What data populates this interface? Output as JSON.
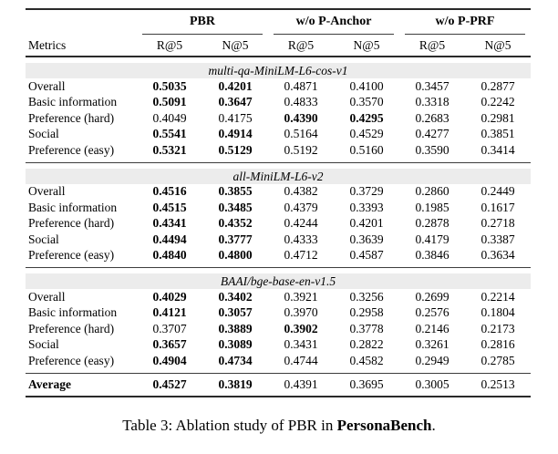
{
  "table": {
    "header": {
      "metrics": "Metrics",
      "groups": [
        {
          "label": "PBR"
        },
        {
          "label": "w/o P-Anchor"
        },
        {
          "label": "w/o P-PRF"
        }
      ],
      "subheaders": [
        "R@5",
        "N@5",
        "R@5",
        "N@5",
        "R@5",
        "N@5"
      ]
    },
    "sections": [
      {
        "model": "multi-qa-MiniLM-L6-cos-v1",
        "rows": [
          {
            "metric": "Overall",
            "values": [
              "0.5035",
              "0.4201",
              "0.4871",
              "0.4100",
              "0.3457",
              "0.2877"
            ],
            "bold": [
              0,
              1
            ]
          },
          {
            "metric": "Basic information",
            "values": [
              "0.5091",
              "0.3647",
              "0.4833",
              "0.3570",
              "0.3318",
              "0.2242"
            ],
            "bold": [
              0,
              1
            ]
          },
          {
            "metric": "Preference (hard)",
            "values": [
              "0.4049",
              "0.4175",
              "0.4390",
              "0.4295",
              "0.2683",
              "0.2981"
            ],
            "bold": [
              2,
              3
            ]
          },
          {
            "metric": "Social",
            "values": [
              "0.5541",
              "0.4914",
              "0.5164",
              "0.4529",
              "0.4277",
              "0.3851"
            ],
            "bold": [
              0,
              1
            ]
          },
          {
            "metric": "Preference (easy)",
            "values": [
              "0.5321",
              "0.5129",
              "0.5192",
              "0.5160",
              "0.3590",
              "0.3414"
            ],
            "bold": [
              0,
              1
            ]
          }
        ]
      },
      {
        "model": "all-MiniLM-L6-v2",
        "rows": [
          {
            "metric": "Overall",
            "values": [
              "0.4516",
              "0.3855",
              "0.4382",
              "0.3729",
              "0.2860",
              "0.2449"
            ],
            "bold": [
              0,
              1
            ]
          },
          {
            "metric": "Basic information",
            "values": [
              "0.4515",
              "0.3485",
              "0.4379",
              "0.3393",
              "0.1985",
              "0.1617"
            ],
            "bold": [
              0,
              1
            ]
          },
          {
            "metric": "Preference (hard)",
            "values": [
              "0.4341",
              "0.4352",
              "0.4244",
              "0.4201",
              "0.2878",
              "0.2718"
            ],
            "bold": [
              0,
              1
            ]
          },
          {
            "metric": "Social",
            "values": [
              "0.4494",
              "0.3777",
              "0.4333",
              "0.3639",
              "0.4179",
              "0.3387"
            ],
            "bold": [
              0,
              1
            ]
          },
          {
            "metric": "Preference (easy)",
            "values": [
              "0.4840",
              "0.4800",
              "0.4712",
              "0.4587",
              "0.3846",
              "0.3634"
            ],
            "bold": [
              0,
              1
            ]
          }
        ]
      },
      {
        "model": "BAAI/bge-base-en-v1.5",
        "rows": [
          {
            "metric": "Overall",
            "values": [
              "0.4029",
              "0.3402",
              "0.3921",
              "0.3256",
              "0.2699",
              "0.2214"
            ],
            "bold": [
              0,
              1
            ]
          },
          {
            "metric": "Basic information",
            "values": [
              "0.4121",
              "0.3057",
              "0.3970",
              "0.2958",
              "0.2576",
              "0.1804"
            ],
            "bold": [
              0,
              1
            ]
          },
          {
            "metric": "Preference (hard)",
            "values": [
              "0.3707",
              "0.3889",
              "0.3902",
              "0.3778",
              "0.2146",
              "0.2173"
            ],
            "bold": [
              1,
              2
            ]
          },
          {
            "metric": "Social",
            "values": [
              "0.3657",
              "0.3089",
              "0.3431",
              "0.2822",
              "0.3261",
              "0.2816"
            ],
            "bold": [
              0,
              1
            ]
          },
          {
            "metric": "Preference (easy)",
            "values": [
              "0.4904",
              "0.4734",
              "0.4744",
              "0.4582",
              "0.2949",
              "0.2785"
            ],
            "bold": [
              0,
              1
            ]
          }
        ]
      }
    ],
    "average": {
      "metric": "Average",
      "values": [
        "0.4527",
        "0.3819",
        "0.4391",
        "0.3695",
        "0.3005",
        "0.2513"
      ],
      "bold": [
        0,
        1
      ]
    }
  },
  "caption": {
    "prefix": "Table 3: Ablation study of PBR in ",
    "bold_text": "PersonaBench",
    "suffix": "."
  },
  "colors": {
    "band_bg": "#ececec",
    "rule_dark": "#2a2a2a",
    "rule_light": "#3d3d3d",
    "text": "#000000"
  }
}
